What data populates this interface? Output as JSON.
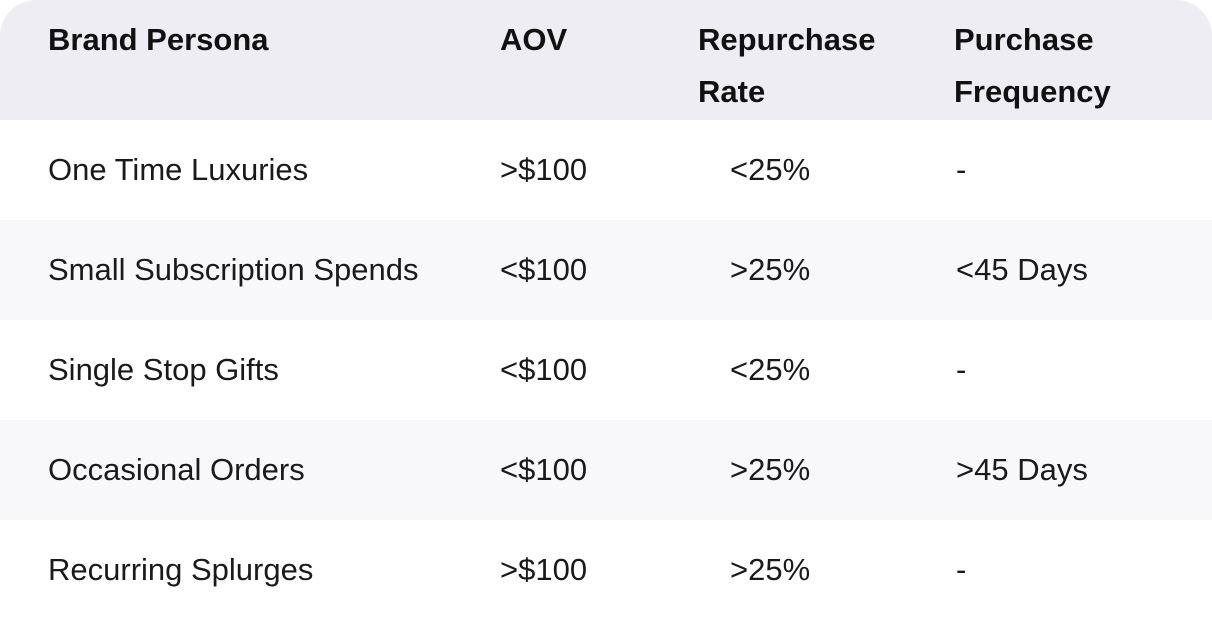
{
  "table": {
    "headers": [
      "Brand Persona",
      "AOV",
      "Repurchase Rate",
      "Purchase Frequency"
    ],
    "rows": [
      [
        "One Time Luxuries",
        ">$100",
        "<25%",
        "-"
      ],
      [
        "Small Subscription Spends",
        "<$100",
        ">25%",
        "<45 Days"
      ],
      [
        "Single Stop Gifts",
        "<$100",
        "<25%",
        "-"
      ],
      [
        "Occasional Orders",
        "<$100",
        ">25%",
        ">45 Days"
      ],
      [
        "Recurring Splurges",
        ">$100",
        ">25%",
        "-"
      ]
    ]
  },
  "colors": {
    "header_bg": "#eeedf4",
    "alt_row_bg": "#f8f8fb",
    "row_bg": "#ffffff"
  }
}
